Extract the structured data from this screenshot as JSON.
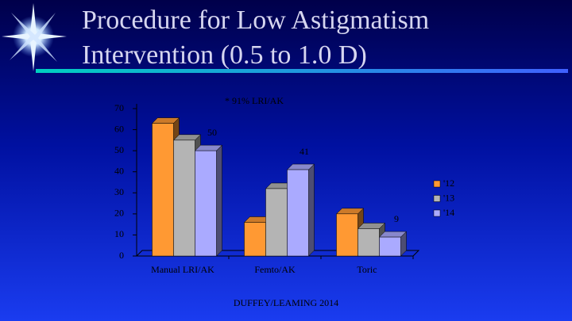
{
  "chart_data": {
    "type": "bar3d",
    "title": "Procedure for Low Astigmatism Intervention (0.5 to 1.0 D)",
    "annotations": [
      "* 91% LRI/AK",
      "DUFFEY/LEAMING 2014"
    ],
    "categories": [
      "Manual LRI/AK",
      "Femto/AK",
      "Toric"
    ],
    "series": [
      {
        "name": "'12",
        "color": "#ff9933",
        "values": [
          63,
          16,
          20
        ]
      },
      {
        "name": "'13",
        "color": "#b4b4b4",
        "values": [
          55,
          32,
          13
        ]
      },
      {
        "name": "'14",
        "color": "#aaaaff",
        "values": [
          50,
          41,
          9
        ],
        "data_labels": true
      }
    ],
    "ylim": [
      0,
      70
    ],
    "yticks": [
      0,
      10,
      20,
      30,
      40,
      50,
      60,
      70
    ],
    "legend": "right"
  }
}
